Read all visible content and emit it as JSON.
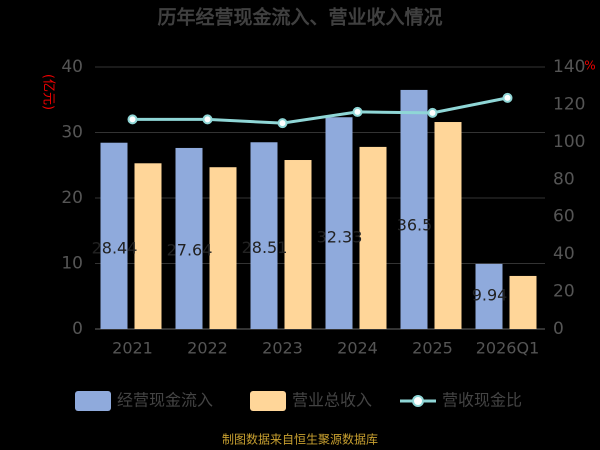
{
  "chart_data": {
    "type": "bar",
    "title": "历年经营现金流入、营业收入情况",
    "y_label": "(亿元)",
    "y2_label": "%",
    "categories": [
      "2021",
      "2022",
      "2023",
      "2024",
      "2025",
      "2026Q1"
    ],
    "series": [
      {
        "name": "经营现金流入",
        "color": "#8faadc",
        "values": [
          28.44,
          27.64,
          28.51,
          32.33,
          36.5,
          9.94
        ]
      },
      {
        "name": "营业总收入",
        "color": "#ffd699",
        "values": [
          25.3,
          24.7,
          25.8,
          27.8,
          31.6,
          8.1
        ]
      },
      {
        "name": "营收现金比",
        "color": "#8fd6d6",
        "type": "line",
        "axis": "y2",
        "values": [
          112,
          112,
          110,
          116,
          115.5,
          123.5
        ]
      }
    ],
    "ylim": [
      0,
      40
    ],
    "yticks": [
      0,
      10,
      20,
      30,
      40
    ],
    "y2lim": [
      0,
      140
    ],
    "y2ticks": [
      0,
      20,
      40,
      60,
      80,
      100,
      120,
      140
    ],
    "grid": true,
    "source": "制图数据来自恒生聚源数据库"
  }
}
